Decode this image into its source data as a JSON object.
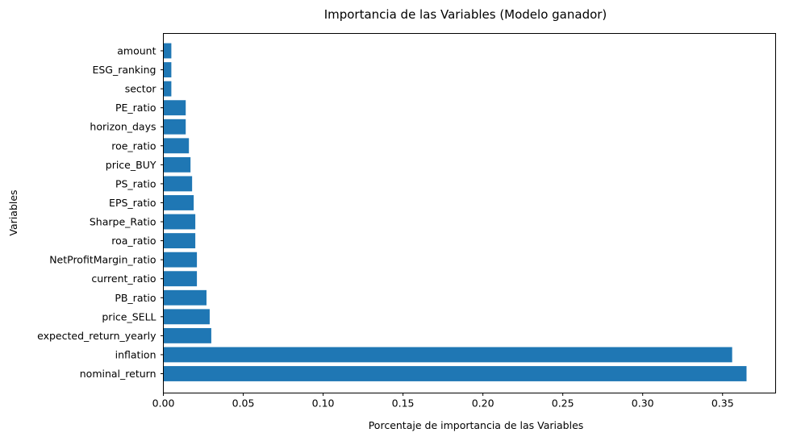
{
  "chart_data": {
    "type": "bar",
    "orientation": "horizontal",
    "title": "Importancia de las Variables (Modelo ganador)",
    "xlabel": "Porcentaje  de importancia de las Variables",
    "ylabel": "Variables",
    "categories": [
      "nominal_return",
      "inflation",
      "expected_return_yearly",
      "price_SELL",
      "PB_ratio",
      "current_ratio",
      "NetProfitMargin_ratio",
      "roa_ratio",
      "Sharpe_Ratio",
      "EPS_ratio",
      "PS_ratio",
      "price_BUY",
      "roe_ratio",
      "horizon_days",
      "PE_ratio",
      "sector",
      "ESG_ranking",
      "amount"
    ],
    "values": [
      0.365,
      0.356,
      0.03,
      0.029,
      0.027,
      0.021,
      0.021,
      0.02,
      0.02,
      0.019,
      0.018,
      0.017,
      0.016,
      0.014,
      0.014,
      0.005,
      0.005,
      0.005
    ],
    "xticks": [
      "0.00",
      "0.05",
      "0.10",
      "0.15",
      "0.20",
      "0.25",
      "0.30",
      "0.35"
    ],
    "xlim": [
      0,
      0.3832
    ],
    "bar_color": "#1f77b4",
    "grid": false,
    "legend": "none"
  }
}
